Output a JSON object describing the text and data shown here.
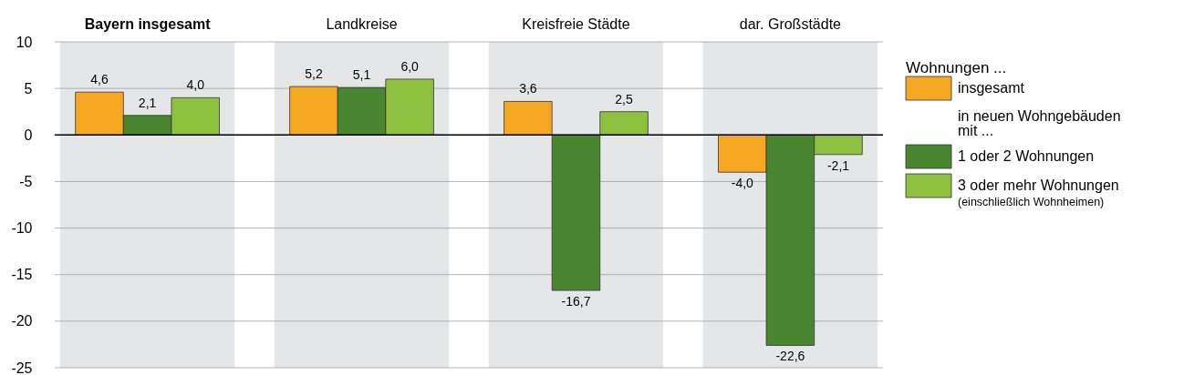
{
  "chart_data": {
    "type": "bar",
    "categories": [
      "Bayern insgesamt",
      "Landkreise",
      "Kreisfreie Städte",
      "dar. Großstädte"
    ],
    "series": [
      {
        "name": "insgesamt",
        "color": "#f7a823",
        "values": [
          4.6,
          5.2,
          3.6,
          -4.0
        ],
        "value_labels": [
          "4,6",
          "5,2",
          "3,6",
          "-4,0"
        ]
      },
      {
        "name": "1 oder 2 Wohnungen",
        "color": "#4a8530",
        "values": [
          2.1,
          5.1,
          -16.7,
          -22.6
        ],
        "value_labels": [
          "2,1",
          "5,1",
          "-16,7",
          "-22,6"
        ]
      },
      {
        "name": "3 oder mehr Wohnungen",
        "color": "#8dc03f",
        "values": [
          4.0,
          6.0,
          2.5,
          -2.1
        ],
        "value_labels": [
          "4,0",
          "6,0",
          "2,5",
          "-2,1"
        ]
      }
    ],
    "ylim": [
      -25,
      10
    ],
    "yticks": [
      -25,
      -20,
      -15,
      -10,
      -5,
      0,
      5,
      10
    ],
    "grid": "y",
    "legend": "right",
    "legend_title": "Wohnungen ...",
    "annotations": [
      "in neuen Wohngebäuden mit ...",
      "(einschließlich Wohnheimen)"
    ],
    "ref_lines": [
      {
        "axis": "y",
        "value": 0,
        "color": "#000000"
      }
    ],
    "bands": [
      {
        "axis": "x",
        "from": "Bayern insgesamt",
        "to": "Bayern insgesamt",
        "color": "#e5e6e8"
      },
      {
        "axis": "x",
        "from": "Landkreise",
        "to": "Landkreise",
        "color": "#e5e6e8"
      },
      {
        "axis": "x",
        "from": "Kreisfreie Städte",
        "to": "Kreisfreie Städte",
        "color": "#e5e6e8"
      },
      {
        "axis": "x",
        "from": "dar. Großstädte",
        "to": "dar. Großstädte",
        "color": "#e5e6e8"
      }
    ]
  }
}
